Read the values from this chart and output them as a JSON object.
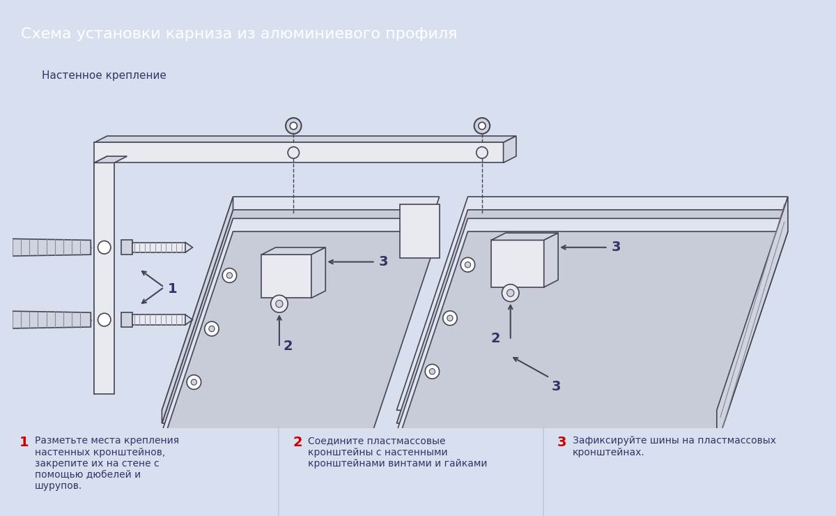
{
  "title": "Схема установки карниза из алюминиевого профиля",
  "subtitle": "Настенное крепление",
  "title_bg": "#6272c8",
  "subtitle_bg": "#b0bce8",
  "main_bg": "#d8e0f0",
  "body_bg": "#e4eaf8",
  "step1_num": "1",
  "step1_text": "Разметьте места крепления\nнастенных кронштейнов,\nзакрепите их на стене с\nпомощью дюбелей и\nшурупов.",
  "step2_num": "2",
  "step2_text": "Соедините пластмассовые\nкронштейны с настенными\nкронштейнами винтами и гайками",
  "step3_num": "3",
  "step3_text": "Зафиксируйте шины на пластмассовых\nкронштейнах.",
  "num_color": "#cc0000",
  "text_color": "#333366",
  "diagram_bg": "#f5f7ff",
  "line_color": "#444455",
  "fill_light": "#e8eaf0",
  "fill_mid": "#d0d4e0",
  "fill_dark": "#b0b4c0"
}
